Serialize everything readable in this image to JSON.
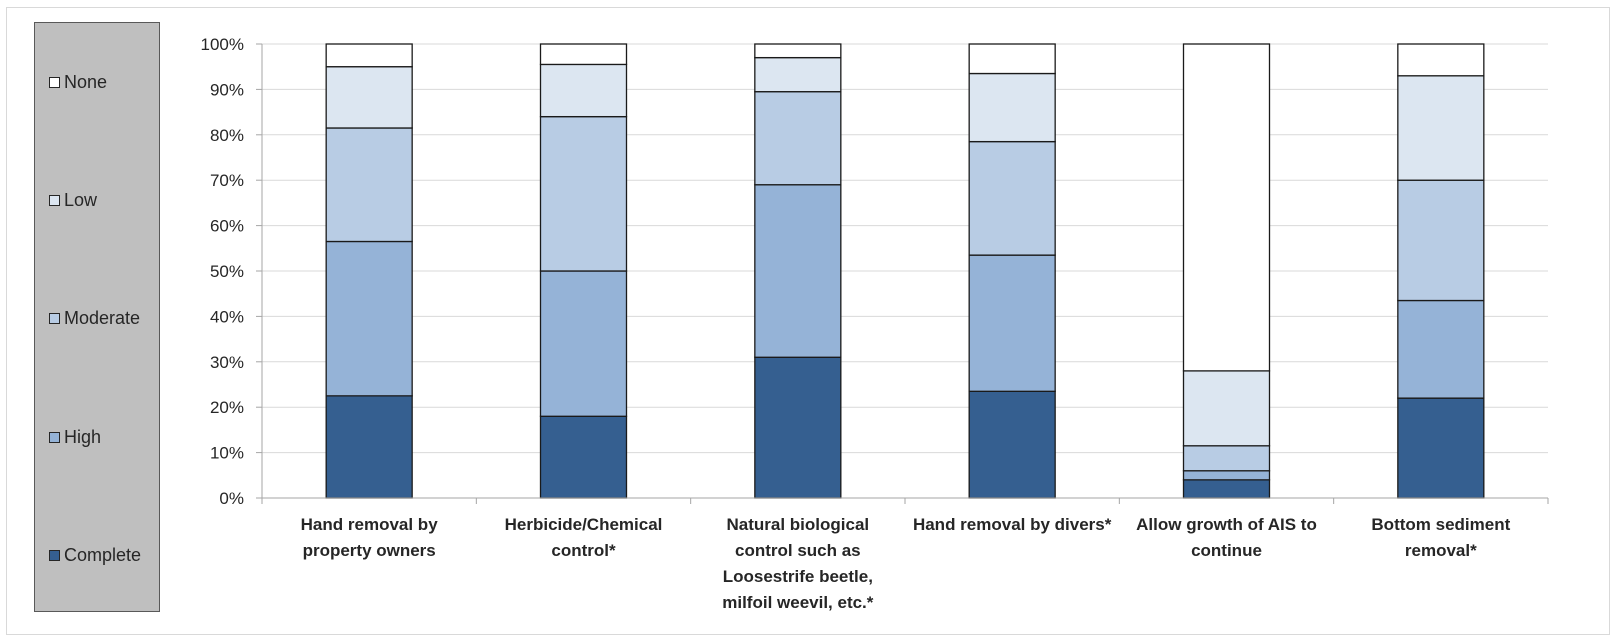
{
  "chart_data": {
    "type": "bar",
    "stacked": true,
    "percent": true,
    "categories": [
      [
        "Hand removal by",
        "property owners"
      ],
      [
        "Herbicide/Chemical",
        "control*"
      ],
      [
        "Natural biological",
        "control such as",
        "Loosestrife beetle,",
        "milfoil weevil, etc.*"
      ],
      [
        "Hand removal by divers*"
      ],
      [
        "Allow growth of AIS to",
        "continue"
      ],
      [
        "Bottom sediment",
        "removal*"
      ]
    ],
    "series": [
      {
        "name": "Complete",
        "color": "#355f90",
        "values": [
          22.5,
          18,
          31,
          23.5,
          4,
          22
        ]
      },
      {
        "name": "High",
        "color": "#95b3d7",
        "values": [
          34,
          32,
          38,
          30,
          2,
          21.5
        ]
      },
      {
        "name": "Moderate",
        "color": "#b8cce4",
        "values": [
          25,
          34,
          20.5,
          25,
          5.5,
          26.5
        ]
      },
      {
        "name": "Low",
        "color": "#dce6f1",
        "values": [
          13.5,
          11.5,
          7.5,
          15,
          16.5,
          23
        ]
      },
      {
        "name": "None",
        "color": "#ffffff",
        "values": [
          5,
          4.5,
          3,
          6.5,
          72,
          7
        ]
      }
    ],
    "ylim": [
      0,
      100
    ],
    "yticks": [
      "0%",
      "10%",
      "20%",
      "30%",
      "40%",
      "50%",
      "60%",
      "70%",
      "80%",
      "90%",
      "100%"
    ],
    "grid": true,
    "legend_position": "left",
    "legend_order": [
      "None",
      "Low",
      "Moderate",
      "High",
      "Complete"
    ]
  }
}
